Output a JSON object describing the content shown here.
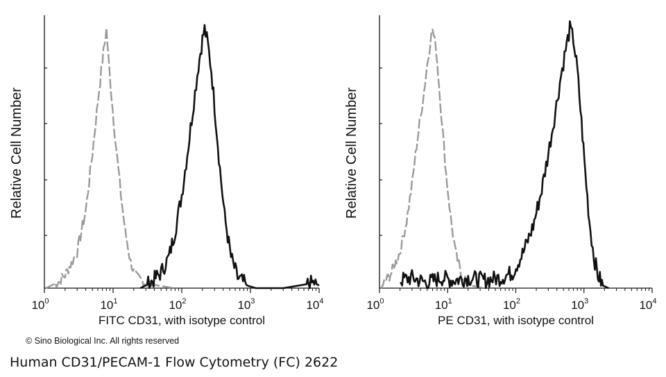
{
  "copyright": "© Sino Biological Inc. All rights reserved",
  "caption": "Human CD31/PECAM-1 Flow Cytometry (FC) 2622",
  "colors": {
    "isotype": "#9a9a9a",
    "stained": "#111111",
    "axis": "#111111"
  },
  "chart_data": [
    {
      "type": "line",
      "xlabel": "FITC  CD31,  with isotype control",
      "ylabel": "Relative Cell Number",
      "x_scale": "log",
      "xlim": [
        1,
        10000
      ],
      "ylim": [
        0,
        100
      ],
      "x_ticks": [
        {
          "value": 1,
          "base": "10",
          "exp": "0"
        },
        {
          "value": 10,
          "base": "10",
          "exp": "1"
        },
        {
          "value": 100,
          "base": "10",
          "exp": "2"
        },
        {
          "value": 1000,
          "base": "10",
          "exp": "3"
        },
        {
          "value": 10000,
          "base": "10",
          "exp": "4"
        }
      ],
      "series": [
        {
          "role": "isotype",
          "style": "dashed",
          "points": [
            [
              1.05,
              0
            ],
            [
              1.5,
              2
            ],
            [
              2,
              5
            ],
            [
              3,
              14
            ],
            [
              4,
              30
            ],
            [
              5,
              52
            ],
            [
              6,
              72
            ],
            [
              7,
              88
            ],
            [
              7.5,
              94
            ],
            [
              8,
              100
            ],
            [
              8.6,
              88
            ],
            [
              9.5,
              74
            ],
            [
              11,
              55
            ],
            [
              13,
              36
            ],
            [
              15,
              22
            ],
            [
              18,
              10
            ],
            [
              22,
              4
            ],
            [
              30,
              2
            ],
            [
              45,
              1
            ],
            [
              80,
              0
            ]
          ]
        },
        {
          "role": "stained",
          "style": "solid",
          "points": [
            [
              25,
              0
            ],
            [
              35,
              2
            ],
            [
              50,
              6
            ],
            [
              65,
              12
            ],
            [
              80,
              22
            ],
            [
              100,
              36
            ],
            [
              125,
              55
            ],
            [
              150,
              72
            ],
            [
              175,
              86
            ],
            [
              200,
              96
            ],
            [
              215,
              100
            ],
            [
              240,
              94
            ],
            [
              270,
              84
            ],
            [
              310,
              66
            ],
            [
              360,
              46
            ],
            [
              420,
              28
            ],
            [
              520,
              12
            ],
            [
              650,
              4
            ],
            [
              900,
              1
            ],
            [
              1200,
              0
            ],
            [
              3000,
              0
            ],
            [
              8500,
              2
            ],
            [
              10000,
              1
            ]
          ]
        }
      ]
    },
    {
      "type": "line",
      "xlabel": "PE  CD31,  with isotype control",
      "ylabel": "Relative Cell Number",
      "x_scale": "log",
      "xlim": [
        1,
        10000
      ],
      "ylim": [
        0,
        100
      ],
      "x_ticks": [
        {
          "value": 1,
          "base": "10",
          "exp": "0"
        },
        {
          "value": 10,
          "base": "10",
          "exp": "1"
        },
        {
          "value": 100,
          "base": "10",
          "exp": "2"
        },
        {
          "value": 1000,
          "base": "10",
          "exp": "3"
        },
        {
          "value": 10000,
          "base": "10",
          "exp": "4"
        }
      ],
      "series": [
        {
          "role": "isotype",
          "style": "dashed",
          "points": [
            [
              1.05,
              0
            ],
            [
              1.5,
              6
            ],
            [
              2,
              14
            ],
            [
              2.5,
              26
            ],
            [
              3,
              40
            ],
            [
              3.5,
              55
            ],
            [
              4,
              66
            ],
            [
              4.5,
              76
            ],
            [
              5,
              86
            ],
            [
              5.5,
              94
            ],
            [
              6,
              100
            ],
            [
              6.8,
              92
            ],
            [
              7.5,
              78
            ],
            [
              8.5,
              60
            ],
            [
              9.5,
              44
            ],
            [
              11,
              28
            ],
            [
              13,
              14
            ],
            [
              16,
              5
            ],
            [
              22,
              1
            ],
            [
              35,
              0
            ]
          ]
        },
        {
          "role": "stained",
          "style": "solid",
          "points": [
            [
              2,
              3
            ],
            [
              3,
              4
            ],
            [
              5,
              2
            ],
            [
              8,
              4
            ],
            [
              12,
              3
            ],
            [
              20,
              4
            ],
            [
              35,
              3
            ],
            [
              60,
              4
            ],
            [
              90,
              6
            ],
            [
              130,
              14
            ],
            [
              180,
              24
            ],
            [
              240,
              38
            ],
            [
              300,
              52
            ],
            [
              380,
              68
            ],
            [
              460,
              82
            ],
            [
              540,
              92
            ],
            [
              620,
              100
            ],
            [
              700,
              96
            ],
            [
              800,
              84
            ],
            [
              920,
              64
            ],
            [
              1050,
              44
            ],
            [
              1200,
              26
            ],
            [
              1400,
              12
            ],
            [
              1600,
              5
            ],
            [
              1900,
              1
            ],
            [
              2300,
              0
            ]
          ]
        }
      ]
    }
  ]
}
